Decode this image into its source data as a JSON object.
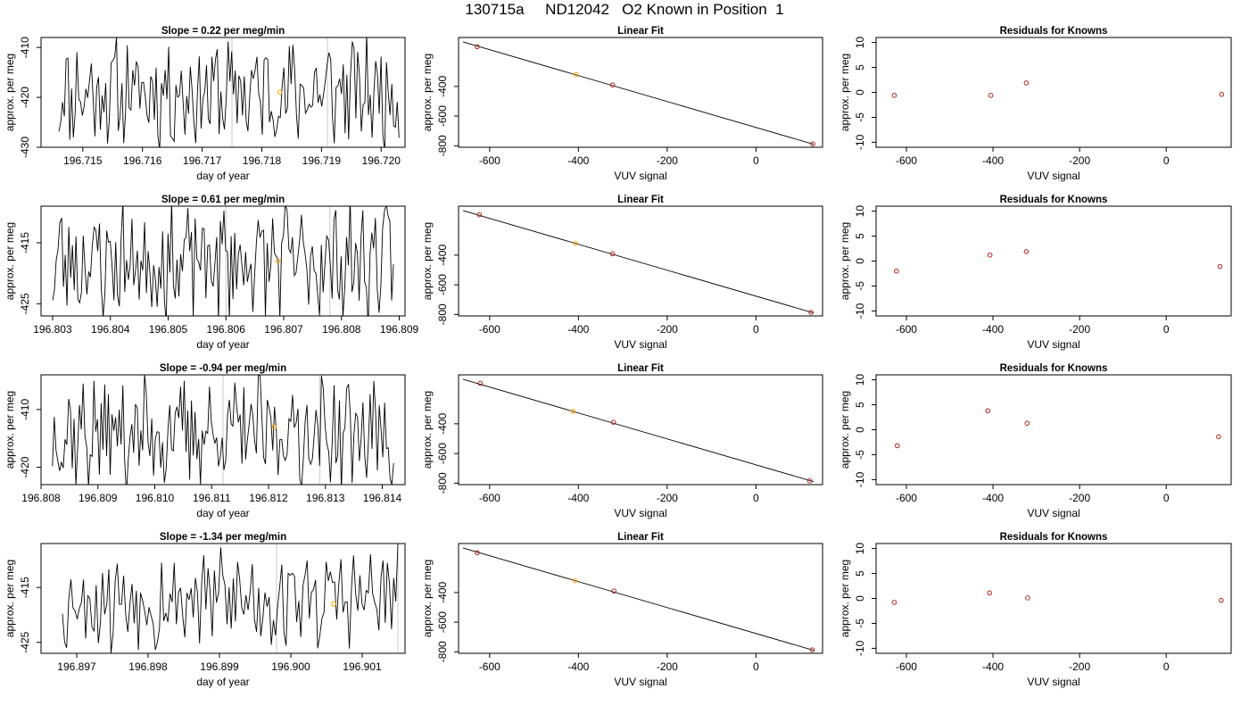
{
  "figure": {
    "title": "130715a     ND12042   O2 Known in Position  1"
  },
  "chart_data": [
    {
      "type": "line",
      "title": "Slope =  0.22  per meg/min",
      "xlabel": "day of year",
      "ylabel": "approx. per meg",
      "xlim": [
        196.7143,
        196.7204
      ],
      "ylim": [
        -430,
        -408
      ],
      "xticks": [
        "196.715",
        "196.716",
        "196.717",
        "196.718",
        "196.719",
        "196.720"
      ],
      "yticks": [
        "-410",
        "-420",
        "-430"
      ],
      "vlines": [
        196.7175,
        196.7191
      ],
      "highlight": {
        "x": 196.7183,
        "y": -419,
        "color": "#ffa500"
      },
      "series": [
        {
          "seed": 11,
          "amp": 9,
          "baseline": -419,
          "x": [
            196.7146,
            196.7203
          ],
          "n": 190
        }
      ]
    },
    {
      "type": "line",
      "title": "Slope =  0.61  per meg/min",
      "xlabel": "day of year",
      "ylabel": "approx. per meg",
      "xlim": [
        196.8028,
        196.8091
      ],
      "ylim": [
        -427,
        -409
      ],
      "xticks": [
        "196.803",
        "196.804",
        "196.805",
        "196.806",
        "196.807",
        "196.808",
        "196.809"
      ],
      "yticks": [
        "-415",
        "-425"
      ],
      "vlines": [
        196.806,
        196.8078
      ],
      "highlight": {
        "x": 196.8069,
        "y": -418,
        "color": "#ffa500"
      },
      "series": [
        {
          "seed": 23,
          "amp": 8,
          "baseline": -418,
          "x": [
            196.803,
            196.8089
          ],
          "n": 190
        }
      ]
    },
    {
      "type": "line",
      "title": "Slope =  -0.94  per meg/min",
      "xlabel": "day of year",
      "ylabel": "approx. per meg",
      "xlim": [
        196.808,
        196.8144
      ],
      "ylim": [
        -423,
        -404
      ],
      "xticks": [
        "196.808",
        "196.809",
        "196.810",
        "196.811",
        "196.812",
        "196.813",
        "196.814"
      ],
      "yticks": [
        "-410",
        "-420"
      ],
      "vlines": [
        196.8112,
        196.8129
      ],
      "highlight": {
        "x": 196.8121,
        "y": -413,
        "color": "#ffa500"
      },
      "series": [
        {
          "seed": 37,
          "amp": 8,
          "baseline": -414,
          "x": [
            196.8082,
            196.8142
          ],
          "n": 190
        }
      ]
    },
    {
      "type": "line",
      "title": "Slope =  -1.34  per meg/min",
      "xlabel": "day of year",
      "ylabel": "approx. per meg",
      "xlim": [
        196.8965,
        196.9016
      ],
      "ylim": [
        -427,
        -407
      ],
      "xticks": [
        "196.897",
        "196.898",
        "196.899",
        "196.900",
        "196.901"
      ],
      "yticks": [
        "-415",
        "-425"
      ],
      "vlines": [
        196.8998,
        196.9015
      ],
      "highlight": {
        "x": 196.9006,
        "y": -418,
        "color": "#ffa500"
      },
      "series": [
        {
          "seed": 53,
          "amp": 8,
          "baseline": -417,
          "x": [
            196.8968,
            196.9015
          ],
          "n": 160
        }
      ]
    },
    {
      "type": "scatter",
      "title": "Linear Fit",
      "xlabel": "VUV signal",
      "ylabel": "approx. per meg",
      "xlim": [
        -670,
        150
      ],
      "ylim": [
        -810,
        -70
      ],
      "xticks": [
        -600,
        -400,
        -200,
        0
      ],
      "yticks": [
        -400,
        -600,
        -800
      ],
      "fit_line": [
        [
          -660,
          -100
        ],
        [
          130,
          -790
        ]
      ],
      "points": [
        [
          -628,
          -132
        ],
        [
          -405,
          -320
        ],
        [
          -323,
          -390
        ],
        [
          128,
          -788
        ]
      ],
      "point_colors": [
        "#b22222",
        "#ffa500",
        "#b22222",
        "#b22222"
      ]
    },
    {
      "type": "scatter",
      "title": "Linear Fit",
      "xlabel": "VUV signal",
      "ylabel": "approx. per meg",
      "xlim": [
        -670,
        150
      ],
      "ylim": [
        -810,
        -70
      ],
      "xticks": [
        -600,
        -400,
        -200,
        0
      ],
      "yticks": [
        -400,
        -600,
        -800
      ],
      "fit_line": [
        [
          -660,
          -100
        ],
        [
          130,
          -790
        ]
      ],
      "points": [
        [
          -623,
          -128
        ],
        [
          -407,
          -322
        ],
        [
          -323,
          -391
        ],
        [
          124,
          -786
        ]
      ],
      "point_colors": [
        "#b22222",
        "#ffa500",
        "#b22222",
        "#b22222"
      ]
    },
    {
      "type": "scatter",
      "title": "Linear Fit",
      "xlabel": "VUV signal",
      "ylabel": "approx. per meg",
      "xlim": [
        -670,
        150
      ],
      "ylim": [
        -810,
        -70
      ],
      "xticks": [
        -600,
        -400,
        -200,
        0
      ],
      "yticks": [
        -400,
        -600,
        -800
      ],
      "fit_line": [
        [
          -660,
          -100
        ],
        [
          130,
          -790
        ]
      ],
      "points": [
        [
          -621,
          -127
        ],
        [
          -412,
          -316
        ],
        [
          -321,
          -390
        ],
        [
          121,
          -785
        ]
      ],
      "point_colors": [
        "#b22222",
        "#ffa500",
        "#b22222",
        "#b22222"
      ]
    },
    {
      "type": "scatter",
      "title": "Linear Fit",
      "xlabel": "VUV signal",
      "ylabel": "approx. per meg",
      "xlim": [
        -670,
        150
      ],
      "ylim": [
        -810,
        -70
      ],
      "xticks": [
        -600,
        -400,
        -200,
        0
      ],
      "yticks": [
        -400,
        -600,
        -800
      ],
      "fit_line": [
        [
          -660,
          -100
        ],
        [
          130,
          -790
        ]
      ],
      "points": [
        [
          -628,
          -132
        ],
        [
          -408,
          -320
        ],
        [
          -320,
          -390
        ],
        [
          127,
          -787
        ]
      ],
      "point_colors": [
        "#b22222",
        "#ffa500",
        "#b22222",
        "#b22222"
      ]
    },
    {
      "type": "scatter",
      "title": "Residuals for Knowns",
      "xlabel": "VUV signal",
      "ylabel": "approx. per meg",
      "xlim": [
        -670,
        150
      ],
      "ylim": [
        -11,
        11
      ],
      "xticks": [
        -600,
        -400,
        -200,
        0
      ],
      "yticks": [
        -10,
        -5,
        0,
        5,
        10
      ],
      "points": [
        [
          -628,
          -0.6
        ],
        [
          -405,
          -0.6
        ],
        [
          -323,
          1.9
        ],
        [
          128,
          -0.4
        ]
      ],
      "point_colors": [
        "#b22222",
        "#b22222",
        "#b22222",
        "#b22222"
      ]
    },
    {
      "type": "scatter",
      "title": "Residuals for Knowns",
      "xlabel": "VUV signal",
      "ylabel": "approx. per meg",
      "xlim": [
        -670,
        150
      ],
      "ylim": [
        -11,
        11
      ],
      "xticks": [
        -600,
        -400,
        -200,
        0
      ],
      "yticks": [
        -10,
        -5,
        0,
        5,
        10
      ],
      "points": [
        [
          -623,
          -2.0
        ],
        [
          -407,
          1.2
        ],
        [
          -323,
          1.9
        ],
        [
          124,
          -1.1
        ]
      ],
      "point_colors": [
        "#b22222",
        "#b22222",
        "#b22222",
        "#b22222"
      ]
    },
    {
      "type": "scatter",
      "title": "Residuals for Knowns",
      "xlabel": "VUV signal",
      "ylabel": "approx. per meg",
      "xlim": [
        -670,
        150
      ],
      "ylim": [
        -11,
        11
      ],
      "xticks": [
        -600,
        -400,
        -200,
        0
      ],
      "yticks": [
        -10,
        -5,
        0,
        5,
        10
      ],
      "points": [
        [
          -621,
          -3.2
        ],
        [
          -412,
          3.8
        ],
        [
          -321,
          1.3
        ],
        [
          121,
          -1.4
        ]
      ],
      "point_colors": [
        "#b22222",
        "#b22222",
        "#b22222",
        "#b22222"
      ]
    },
    {
      "type": "scatter",
      "title": "Residuals for Knowns",
      "xlabel": "VUV signal",
      "ylabel": "approx. per meg",
      "xlim": [
        -670,
        150
      ],
      "ylim": [
        -11,
        11
      ],
      "xticks": [
        -600,
        -400,
        -200,
        0
      ],
      "yticks": [
        -10,
        -5,
        0,
        5,
        10
      ],
      "points": [
        [
          -628,
          -0.8
        ],
        [
          -408,
          1.1
        ],
        [
          -320,
          0.1
        ],
        [
          127,
          -0.4
        ]
      ],
      "point_colors": [
        "#b22222",
        "#b22222",
        "#b22222",
        "#b22222"
      ]
    }
  ]
}
